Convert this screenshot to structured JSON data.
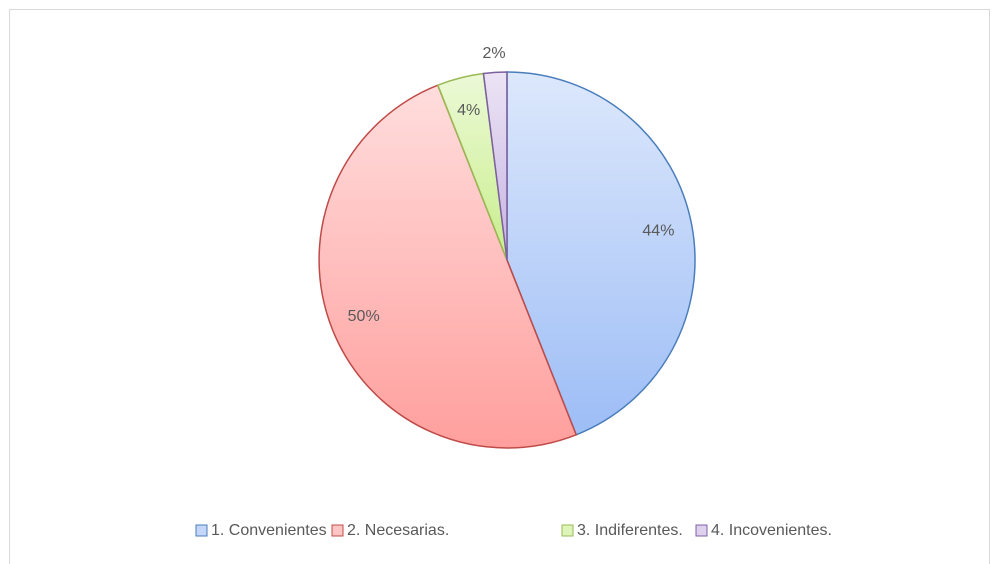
{
  "chart_data": {
    "type": "pie",
    "categories": [
      "1. Convenientes",
      "2. Necesarias.",
      "3. Indiferentes.",
      "4. Incovenientes."
    ],
    "values": [
      44,
      50,
      4,
      2
    ],
    "value_labels": [
      "44%",
      "50%",
      "4%",
      "2%"
    ],
    "colors": [
      "#9dbdf6",
      "#ff9f9d",
      "#c8ee8c",
      "#c7b2e2"
    ],
    "edge_colors": [
      "#4a7ebb",
      "#be4b48",
      "#98b954",
      "#7d60a0"
    ],
    "legend": "bottom"
  }
}
